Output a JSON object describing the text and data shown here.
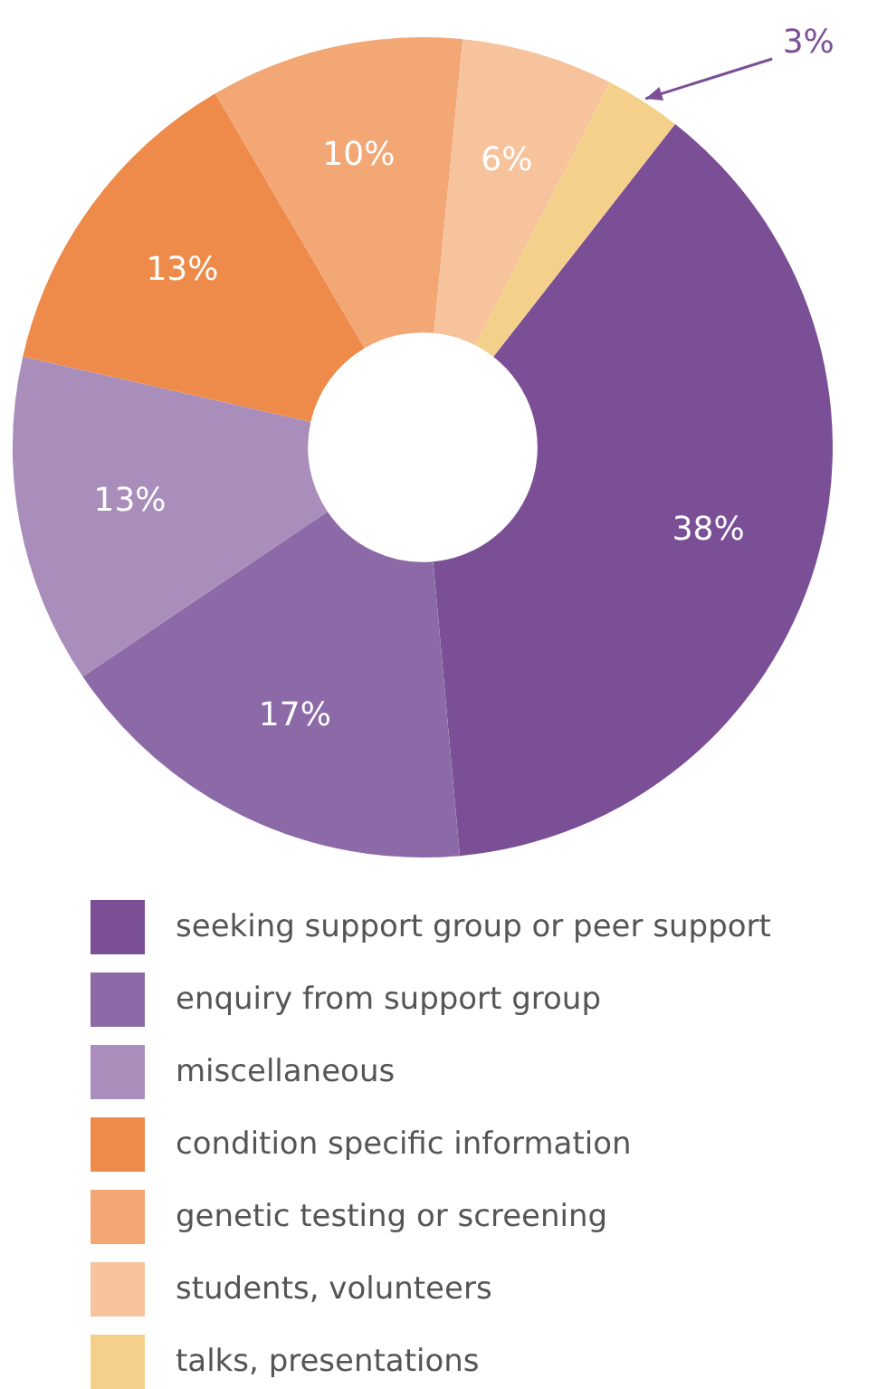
{
  "chart_data": {
    "type": "donut",
    "categories": [
      "seeking support group or peer support",
      "enquiry from support group",
      "miscellaneous",
      "condition specific information",
      "genetic testing or screening",
      "students, volunteers",
      "talks, presentations"
    ],
    "values": [
      38,
      17,
      13,
      13,
      10,
      6,
      3
    ],
    "colors": [
      "#7b4f96",
      "#8c6aa8",
      "#a98dbb",
      "#ee8b4a",
      "#f2a774",
      "#f6c39d",
      "#f5d08a"
    ],
    "value_labels": [
      "38%",
      "17%",
      "13%",
      "13%",
      "10%",
      "6%",
      "3%"
    ],
    "legend": "bottom"
  }
}
